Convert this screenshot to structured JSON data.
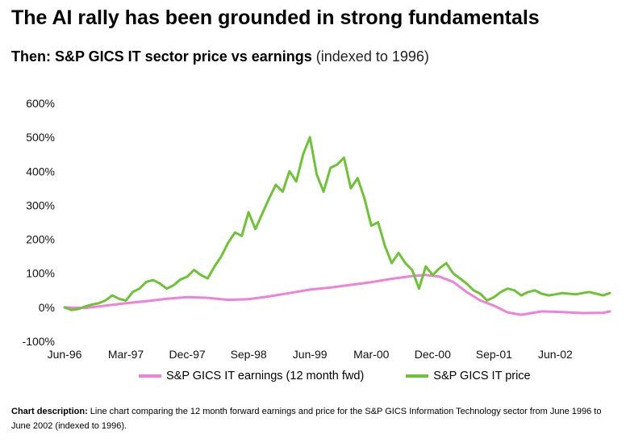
{
  "header": {
    "title": "The AI rally has been grounded in strong fundamentals",
    "subtitle_bold": "Then: S&P GICS IT sector price vs earnings",
    "subtitle_light": " (indexed to 1996)"
  },
  "footer": {
    "description_label": "Chart description:",
    "description_text": " Line chart comparing the 12 month forward earnings and price for the S&P GICS Information Technology sector from June 1996 to June 2002 (indexed to 1996)."
  },
  "chart_data": {
    "type": "line",
    "title": "Then: S&P GICS IT sector price vs earnings (indexed to 1996)",
    "xlabel": "",
    "ylabel": "",
    "ylim": [
      -100,
      600
    ],
    "yticks": [
      -100,
      0,
      100,
      200,
      300,
      400,
      500,
      600
    ],
    "ytick_labels": [
      "-100%",
      "0%",
      "100%",
      "200%",
      "300%",
      "400%",
      "500%",
      "600%"
    ],
    "xlim": [
      0,
      80
    ],
    "xticks": [
      0,
      9,
      18,
      27,
      36,
      45,
      54,
      63,
      72
    ],
    "xtick_labels": [
      "Jun-96",
      "Mar-97",
      "Dec-97",
      "Sep-98",
      "Jun-99",
      "Mar-00",
      "Dec-00",
      "Sep-01",
      "Jun-02"
    ],
    "x_unit": "months since Jun-96",
    "grid": false,
    "legend_position": "bottom",
    "series": [
      {
        "name": "S&P GICS IT earnings (12 month fwd)",
        "color": "#ee82d8",
        "x": [
          0,
          3,
          6,
          9,
          12,
          15,
          18,
          21,
          24,
          27,
          30,
          33,
          36,
          39,
          42,
          45,
          48,
          51,
          53,
          55,
          57,
          59,
          61,
          63,
          65,
          67,
          70,
          73,
          76,
          79,
          80
        ],
        "values": [
          0,
          -2,
          5,
          12,
          18,
          25,
          30,
          28,
          22,
          24,
          32,
          42,
          52,
          58,
          66,
          74,
          84,
          92,
          95,
          90,
          75,
          45,
          20,
          5,
          -15,
          -22,
          -12,
          -14,
          -17,
          -16,
          -12
        ]
      },
      {
        "name": "S&P GICS IT price",
        "color": "#6cc433",
        "x": [
          0,
          1,
          2,
          3,
          4,
          5,
          6,
          7,
          8,
          9,
          10,
          11,
          12,
          13,
          14,
          15,
          16,
          17,
          18,
          19,
          20,
          21,
          22,
          23,
          24,
          25,
          26,
          27,
          28,
          29,
          30,
          31,
          32,
          33,
          34,
          35,
          36,
          37,
          38,
          39,
          40,
          41,
          42,
          43,
          44,
          45,
          46,
          47,
          48,
          49,
          50,
          51,
          52,
          53,
          54,
          55,
          56,
          57,
          58,
          59,
          60,
          61,
          62,
          63,
          64,
          65,
          66,
          67,
          68,
          69,
          70,
          71,
          72,
          73,
          74,
          75,
          76,
          77,
          78,
          79,
          80
        ],
        "values": [
          0,
          -8,
          -5,
          2,
          8,
          12,
          20,
          35,
          25,
          20,
          45,
          55,
          75,
          80,
          70,
          55,
          65,
          82,
          90,
          110,
          95,
          85,
          120,
          150,
          190,
          220,
          210,
          280,
          230,
          275,
          320,
          360,
          340,
          400,
          370,
          450,
          500,
          390,
          340,
          410,
          420,
          440,
          350,
          380,
          320,
          240,
          250,
          180,
          130,
          160,
          130,
          110,
          55,
          120,
          95,
          115,
          130,
          100,
          85,
          70,
          50,
          40,
          20,
          30,
          45,
          55,
          50,
          35,
          45,
          50,
          40,
          35,
          38,
          42,
          40,
          38,
          42,
          45,
          40,
          35,
          42
        ]
      }
    ]
  }
}
